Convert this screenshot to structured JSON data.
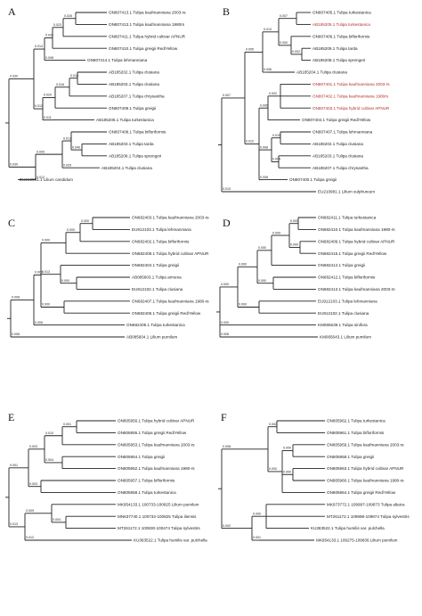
{
  "panels": [
    {
      "letter": "A",
      "leaves": [
        {
          "label": "ON807413.1 Tulipa kaufmanniana 2003-rs",
          "color": "black"
        },
        {
          "label": "ON807413.1 Tulipa kaufmanniana 1980rs",
          "color": "black"
        },
        {
          "label": "ON807411.1 Tulipa hybrid cultivar APNUR",
          "color": "black"
        },
        {
          "label": "ON807410.1 Tulipa greigii Red/Yellow",
          "color": "black"
        },
        {
          "label": "ON807414.1 Tulipa lehmanniana",
          "color": "black"
        },
        {
          "label": "AB185202.1 Tulipa clusiana",
          "color": "black"
        },
        {
          "label": "AB185203.1 Tulipa clusiana",
          "color": "black"
        },
        {
          "label": "AB185207.1 Tulipa chrysantha",
          "color": "black"
        },
        {
          "label": "ON807409.1 Tulipa greigii",
          "color": "black"
        },
        {
          "label": "AB185205.1 Tulipa turkestanica",
          "color": "black"
        },
        {
          "label": "ON807408.1 Tulipa bifloriformis",
          "color": "black"
        },
        {
          "label": "AB185203.1 Tulipa tarda",
          "color": "black"
        },
        {
          "label": "AB185208.1 Tulipa sprengeri",
          "color": "black"
        },
        {
          "label": "AB185204.1 Tulipa clusiana",
          "color": "black"
        },
        {
          "label": "EU210981.1 Lilium candidum",
          "color": "black"
        }
      ],
      "supports": [
        "0.026",
        "0.023",
        "0.034",
        "0.008",
        "0.014",
        "0.018",
        "0.016",
        "0.020",
        "0.011",
        "0.012",
        "0.030",
        "0.040",
        "0.013",
        "0.025",
        "0.009",
        "0.012",
        "0.030",
        "0.015"
      ]
    },
    {
      "letter": "B",
      "leaves": [
        {
          "label": "ON807405.1 Tulipa turkestanica",
          "color": "black"
        },
        {
          "label": "AB185205.1 Tulipa turkestanica",
          "color": "red"
        },
        {
          "label": "ON807406.1 Tulipa bifloriformis",
          "color": "black"
        },
        {
          "label": "AB185209.1 Tulipa tarda",
          "color": "black"
        },
        {
          "label": "AB185208.1 Tulipa sprengeri",
          "color": "black"
        },
        {
          "label": "AB185204.1 Tulipa clusiana",
          "color": "black"
        },
        {
          "label": "ON807401.1 Tulipa kaufmanniana 2003-rs",
          "color": "red"
        },
        {
          "label": "ON807402.1 Tulipa kaufmanniana 1980rs",
          "color": "red"
        },
        {
          "label": "ON807403.1 Tulipa hybrid cultivar APNUR",
          "color": "red"
        },
        {
          "label": "ON807404.1 Tulipa greigii Red/Yellow",
          "color": "black"
        },
        {
          "label": "ON807407.1 Tulipa lehmanniana",
          "color": "black"
        },
        {
          "label": "AB185202.1 Tulipa clusiana",
          "color": "black"
        },
        {
          "label": "AB185203.1 Tulipa clusiana",
          "color": "black"
        },
        {
          "label": "AB185207.1 Tulipa chrysantha",
          "color": "black"
        },
        {
          "label": "ON807400.1 Tulipa greigii",
          "color": "black"
        },
        {
          "label": "EU210981.1 Lilium sulphureum",
          "color": "black"
        }
      ],
      "supports": [
        "0.007",
        "0.002",
        "0.000",
        "0.013",
        "0.006",
        "0.005",
        "0.002",
        "0.006",
        "0.015",
        "0.004",
        "0.008",
        "0.008",
        "0.012",
        "0.007",
        "0.010",
        "0.014",
        "0.006",
        "0.011",
        "0.012",
        "0.010",
        "0.006",
        "0.016"
      ]
    },
    {
      "letter": "C",
      "leaves": [
        {
          "label": "ON682403.1 Tulipa kaufmanniana 2003-rs",
          "color": "black"
        },
        {
          "label": "EU912103.1 Tulipa lehmanniana",
          "color": "black"
        },
        {
          "label": "ON682402.1 Tulipa bifloriformis",
          "color": "black"
        },
        {
          "label": "ON682408.1 Tulipa hybrid cultivar APNUR",
          "color": "black"
        },
        {
          "label": "ON682404.1 Tulipa greigii",
          "color": "black"
        },
        {
          "label": "AB085603.1 Tulipa armena",
          "color": "black"
        },
        {
          "label": "EU912102.1 Tulipa clusiana",
          "color": "black"
        },
        {
          "label": "ON682407.1 Tulipa kaufmanniana 1980-rs",
          "color": "black"
        },
        {
          "label": "ON682406.1 Tulipa greigii Red/Yellow",
          "color": "black"
        },
        {
          "label": "ON682405.1 Tulipa turkestanica",
          "color": "black"
        },
        {
          "label": "AB085604.1 Lilium pumilum",
          "color": "black"
        }
      ],
      "supports": [
        "0.000",
        "0.000",
        "0.000",
        "0.000",
        "0.013",
        "0.000",
        "0.000",
        "0.006",
        "0.008",
        "0.006",
        "0.014",
        "0.002",
        "0.000",
        "0.008",
        "0.014",
        "0.007",
        "0.009",
        "0.010"
      ]
    },
    {
      "letter": "D",
      "leaves": [
        {
          "label": "ON682411.1 Tulipa turkestanica",
          "color": "black"
        },
        {
          "label": "ON682410.1 Tulipa kaufmanniana 1980-rs",
          "color": "black"
        },
        {
          "label": "ON682409.1 Tulipa hybrid cultivar APNUR",
          "color": "black"
        },
        {
          "label": "ON682415.1 Tulipa greigii Red/Yellow",
          "color": "black"
        },
        {
          "label": "ON682414.1 Tulipa greigii",
          "color": "black"
        },
        {
          "label": "ON682412.1 Tulipa bifloriformis",
          "color": "black"
        },
        {
          "label": "ON682413.1 Tulipa kaufmanniana 2003-rs",
          "color": "black"
        },
        {
          "label": "EU912103.1 Tulipa lehmanniana",
          "color": "black"
        },
        {
          "label": "EU912102.1 Tulipa clusiana",
          "color": "black"
        },
        {
          "label": "KM065639.1 Tulipa sinifora",
          "color": "black"
        },
        {
          "label": "KM065643.1 Lilium pumilum",
          "color": "black"
        }
      ],
      "supports": [
        "0.000",
        "0.000",
        "0.000",
        "0.000",
        "0.000",
        "0.000",
        "0.000",
        "0.000",
        "0.000",
        "0.008",
        "0.000",
        "0.000",
        "0.002",
        "0.009",
        "0.006",
        "0.006",
        "0.000",
        "0.012",
        "0.006"
      ]
    },
    {
      "letter": "E",
      "leaves": [
        {
          "label": "ON805956.1 Tulipa hybrid cultivar APNUR",
          "color": "black"
        },
        {
          "label": "ON805955.1 Tulipa greigii Red/Yellow",
          "color": "black"
        },
        {
          "label": "ON805953.1 Tulipa kaufmanniana 2003-rs",
          "color": "black"
        },
        {
          "label": "ON805954.1 Tulipa greigii",
          "color": "black"
        },
        {
          "label": "ON805952.1 Tulipa kaufmanniana 1980-rs",
          "color": "black"
        },
        {
          "label": "ON805957.1 Tulipa bifloriformis",
          "color": "black"
        },
        {
          "label": "ON805958.1 Tulipa turkestanica",
          "color": "black"
        },
        {
          "label": "MK954133.1 100733-100825 Lilium pumilum",
          "color": "black"
        },
        {
          "label": "MN637740.1 100732-100825 Tulipa iliensis",
          "color": "black"
        },
        {
          "label": "MT261172.1 100830-100474 Tulipa sylvestris",
          "color": "black"
        },
        {
          "label": "KU363522.1 Tulipa humilis var. pulchella",
          "color": "black"
        }
      ],
      "supports": [
        "0.001",
        "0.010",
        "0.004",
        "0.003",
        "0.003",
        "0.001",
        "0.004",
        "0.009",
        "0.012",
        "0.013",
        "0.001",
        "0.004",
        "0.004",
        "0.000"
      ]
    },
    {
      "letter": "F",
      "leaves": [
        {
          "label": "ON805962.1 Tulipa turkestanica",
          "color": "black"
        },
        {
          "label": "ON805961.1 Tulipa bifloriformis",
          "color": "black"
        },
        {
          "label": "ON805959.1 Tulipa kaufmanniana 2003-rs",
          "color": "black"
        },
        {
          "label": "ON805958.1 Tulipa greigii",
          "color": "black"
        },
        {
          "label": "ON805963.1 Tulipa hybrid cultivar APNUR",
          "color": "black"
        },
        {
          "label": "ON805960.1 Tulipa kaufmanniana 1980-rs",
          "color": "black"
        },
        {
          "label": "ON805964.1 Tulipa greigii Red/Yellow",
          "color": "black"
        },
        {
          "label": "MK973772.1 109997-109873 Tulipa altaica",
          "color": "black"
        },
        {
          "label": "MT261172.1 109998-109874 Tulipa sylvestris",
          "color": "black"
        },
        {
          "label": "KU363522.1 Tulipa humilis var. pulchella",
          "color": "black"
        },
        {
          "label": "MK954133.1 109275-109836 Lilium pumilum",
          "color": "black"
        }
      ],
      "supports": [
        "0.002",
        "0.000",
        "0.000",
        "0.000",
        "0.008",
        "0.000",
        "0.001",
        "0.002",
        "0.000",
        "0.004",
        "0.009",
        "0.007",
        "0.010"
      ]
    }
  ]
}
